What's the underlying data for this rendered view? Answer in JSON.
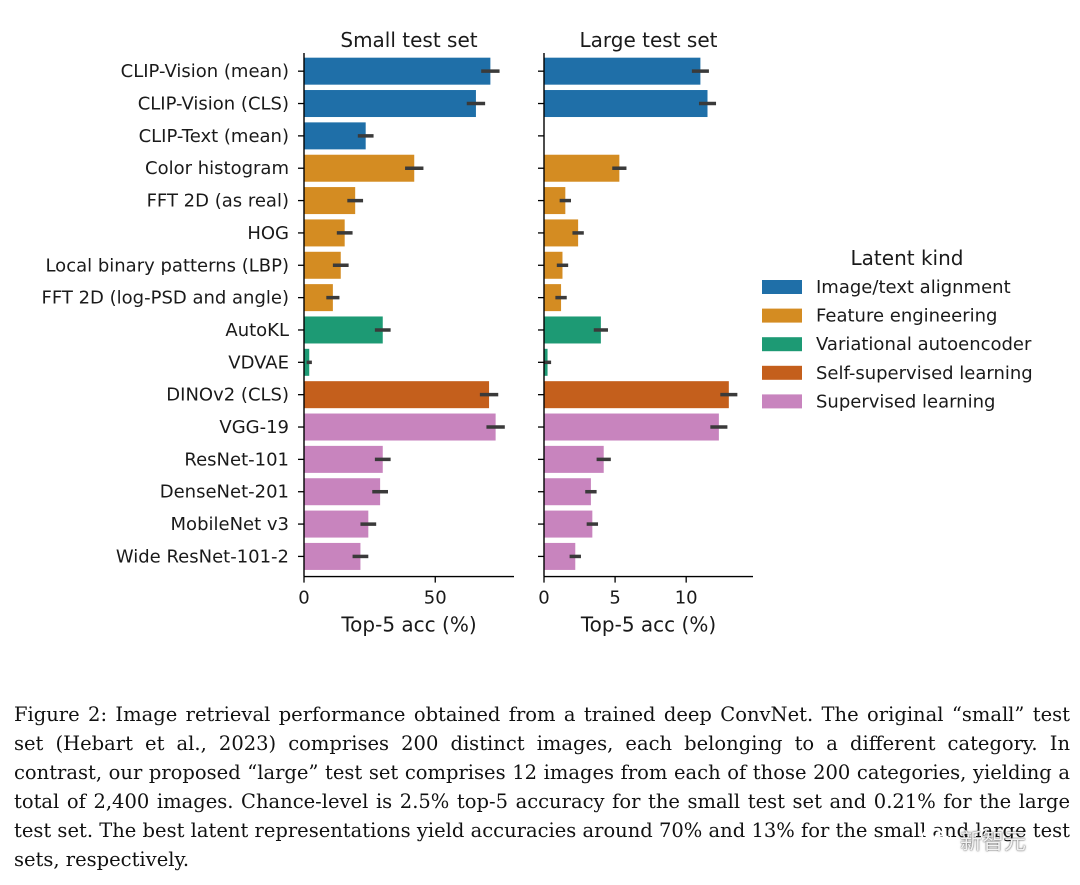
{
  "chart_data": {
    "type": "bar",
    "orientation": "horizontal",
    "categories": [
      "CLIP-Vision (mean)",
      "CLIP-Vision (CLS)",
      "CLIP-Text (mean)",
      "Color histogram",
      "FFT 2D (as real)",
      "HOG",
      "Local binary patterns (LBP)",
      "FFT 2D (log-PSD and angle)",
      "AutoKL",
      "VDVAE",
      "DINOv2 (CLS)",
      "VGG-19",
      "ResNet-101",
      "DenseNet-201",
      "MobileNet v3",
      "Wide ResNet-101-2"
    ],
    "kinds": [
      0,
      0,
      0,
      1,
      1,
      1,
      1,
      1,
      2,
      2,
      3,
      4,
      4,
      4,
      4,
      4
    ],
    "legend": {
      "title": "Latent kind",
      "placement": "right",
      "entries": [
        {
          "label": "Image/text alignment",
          "color": "#1f6fa8"
        },
        {
          "label": "Feature engineering",
          "color": "#d48c22"
        },
        {
          "label": "Variational autoencoder",
          "color": "#1d9a74"
        },
        {
          "label": "Self-supervised learning",
          "color": "#c45f1c"
        },
        {
          "label": "Supervised learning",
          "color": "#c884be"
        }
      ]
    },
    "panels": [
      {
        "title": "Small test set",
        "xlabel": "Top-5 acc (%)",
        "xlim": [
          0,
          80
        ],
        "xticks": [
          0,
          50
        ],
        "values": [
          71,
          65.5,
          23.5,
          42,
          19.5,
          15.5,
          14,
          11,
          30,
          2,
          70.5,
          73,
          30,
          29,
          24.5,
          21.5
        ],
        "errors": [
          3.5,
          3.5,
          3,
          3.5,
          3,
          3,
          3,
          2.5,
          3,
          1,
          3.5,
          3.5,
          3,
          3,
          3,
          3
        ]
      },
      {
        "title": "Large test set",
        "xlabel": "Top-5 acc (%)",
        "xlim": [
          0,
          14.7
        ],
        "xticks": [
          0,
          5,
          10
        ],
        "values": [
          11,
          11.5,
          0,
          5.3,
          1.5,
          2.4,
          1.3,
          1.2,
          4,
          0.25,
          13,
          12.3,
          4.2,
          3.3,
          3.4,
          2.2
        ],
        "errors": [
          0.6,
          0.6,
          0,
          0.5,
          0.4,
          0.4,
          0.4,
          0.4,
          0.5,
          0.25,
          0.6,
          0.6,
          0.5,
          0.4,
          0.4,
          0.4
        ]
      }
    ]
  },
  "caption": {
    "text": "Figure 2: Image retrieval performance obtained from a trained deep ConvNet. The original “small” test set (Hebart et al., 2023) comprises 200 distinct images, each belonging to a different category. In contrast, our proposed “large” test set comprises 12 images from each of those 200 categories, yielding a total of 2,400 images. Chance-level is 2.5% top-5 accuracy for the small test set and 0.21% for the large test set. The best latent representations yield accuracies around 70% and 13% for the small and large test sets, respectively."
  },
  "watermark": {
    "text": "新智元",
    "icon": "wechat-logo-icon"
  }
}
